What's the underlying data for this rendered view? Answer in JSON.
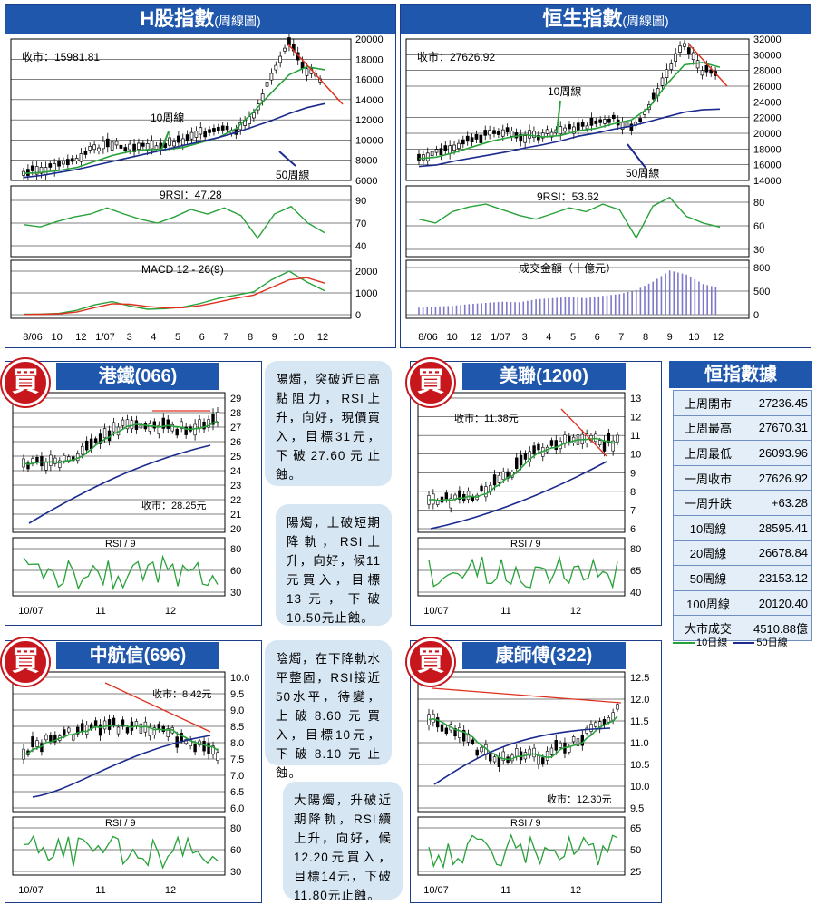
{
  "colors": {
    "blue_header": "#1f57ad",
    "ma10": "#28a23a",
    "ma50": "#1a2a8f",
    "trend": "#e0301e",
    "volume": "#7d78c8",
    "note_bg": "#d7e6f3",
    "stamp": "#c8161d"
  },
  "hshare": {
    "title": "H股指數",
    "subtitle": "(周線圖)",
    "close_label": "收市：15981.81",
    "ma10_label": "10周線",
    "ma50_label": "50周線",
    "rsi_label": "9RSI：47.28",
    "macd_label": "MACD 12 - 26(9)",
    "price_ticks": [
      "20000",
      "18000",
      "16000",
      "14000",
      "12000",
      "10000",
      "8000",
      "6000"
    ],
    "rsi_ticks": [
      "90",
      "70",
      "40"
    ],
    "macd_ticks": [
      "2000",
      "1000",
      "0"
    ],
    "x_ticks": [
      "8/06",
      "10",
      "12",
      "1/07",
      "3",
      "4",
      "5",
      "6",
      "7",
      "8",
      "9",
      "10",
      "12"
    ]
  },
  "hsi": {
    "title": "恒生指數",
    "subtitle": "(周線圖)",
    "close_label": "收市：27626.92",
    "ma10_label": "10周線",
    "ma50_label": "50周線",
    "rsi_label": "9RSI：53.62",
    "vol_label": "成交金額（十億元）",
    "price_ticks": [
      "32000",
      "30000",
      "28000",
      "26000",
      "24000",
      "22000",
      "20000",
      "18000",
      "16000",
      "14000"
    ],
    "rsi_ticks": [
      "80",
      "60",
      "30"
    ],
    "vol_ticks": [
      "800",
      "500",
      "0"
    ],
    "x_ticks": [
      "8/06",
      "10",
      "12",
      "1/07",
      "3",
      "4",
      "5",
      "6",
      "7",
      "8",
      "9",
      "10",
      "12"
    ]
  },
  "stock_mtr": {
    "title": "港鐵(066)",
    "stamp": "買",
    "close_label": "收市：28.25元",
    "price_ticks": [
      "29",
      "28",
      "27",
      "26",
      "25",
      "24",
      "23",
      "22",
      "21",
      "20"
    ],
    "rsi_label": "RSI / 9",
    "rsi_ticks": [
      "80",
      "60",
      "30"
    ],
    "x_ticks": [
      "10/07",
      "11",
      "12"
    ],
    "note": "陽燭，突破近日高點阻力，RSI上升，向好，現價買入，目標31元，下破27.60元止蝕。"
  },
  "stock_mei": {
    "title": "美聯(1200)",
    "stamp": "買",
    "close_label": "收市：11.38元",
    "price_ticks": [
      "13",
      "12",
      "11",
      "10",
      "9",
      "8",
      "7",
      "6"
    ],
    "rsi_label": "RSI / 9",
    "rsi_ticks": [
      "80",
      "65",
      "40"
    ],
    "x_ticks": [
      "10/07",
      "11",
      "12"
    ],
    "note": "陽燭，上破短期降軌，RSI上升，向好，候11元買入，目標13元，下破10.50元止蝕。"
  },
  "stock_cat": {
    "title": "中航信(696)",
    "stamp": "買",
    "close_label": "收市：8.42元",
    "price_ticks": [
      "10.0",
      "9.5",
      "9.0",
      "8.5",
      "8.0",
      "7.5",
      "7.0",
      "6.5",
      "6.0"
    ],
    "rsi_label": "RSI / 9",
    "rsi_ticks": [
      "80",
      "60",
      "30"
    ],
    "x_ticks": [
      "10/07",
      "11",
      "12"
    ],
    "note": "陰燭，在下降軌水平整固，RSI接近50水平，待變，上破8.60元買入，目標10元，下破8.10元止蝕。"
  },
  "stock_ksf": {
    "title": "康師傅(322)",
    "stamp": "買",
    "close_label": "收市：12.30元",
    "price_ticks": [
      "12.5",
      "12.0",
      "11.5",
      "11.0",
      "10.5",
      "10.0",
      "9.5"
    ],
    "rsi_label": "RSI / 9",
    "rsi_ticks": [
      "65",
      "50",
      "25"
    ],
    "x_ticks": [
      "10/07",
      "11",
      "12"
    ],
    "note": "大陽燭，升破近期降軌，RSI續上升，向好，候12.20元買入，目標14元，下破11.80元止蝕。"
  },
  "stats": {
    "title": "恒指數據",
    "rows": [
      {
        "k": "上周開市",
        "v": "27236.45"
      },
      {
        "k": "上周最高",
        "v": "27670.31"
      },
      {
        "k": "上周最低",
        "v": "26093.96"
      },
      {
        "k": "一周收市",
        "v": "27626.92"
      },
      {
        "k": "一周升跌",
        "v": "+63.28"
      },
      {
        "k": "10周線",
        "v": "28595.41"
      },
      {
        "k": "20周線",
        "v": "26678.84"
      },
      {
        "k": "50周線",
        "v": "23153.12"
      },
      {
        "k": "100周線",
        "v": "20120.40"
      },
      {
        "k": "大市成交",
        "v": "4510.88億"
      }
    ],
    "legend": {
      "ma10": "10日線",
      "ma50": "50日線"
    }
  },
  "chart_data": [
    {
      "id": "hshare_price",
      "type": "line",
      "ylim": [
        6000,
        20000
      ],
      "series": [
        {
          "name": "10周線",
          "values": [
            6700,
            6800,
            7000,
            7300,
            7900,
            8500,
            8900,
            9100,
            9100,
            9300,
            9800,
            10300,
            11200,
            12900,
            14800,
            16600,
            17400,
            17100
          ]
        },
        {
          "name": "50周線",
          "values": [
            6300,
            6500,
            6800,
            7100,
            7500,
            7900,
            8300,
            8700,
            9100,
            9500,
            9900,
            10300,
            10800,
            11400,
            12000,
            12700,
            13300,
            13700
          ]
        }
      ],
      "close_values": [
        6800,
        7100,
        7500,
        8200,
        9300,
        9600,
        9100,
        9400,
        9600,
        10000,
        10700,
        11400,
        11000,
        12700,
        16400,
        19700,
        17100,
        15981.81
      ]
    },
    {
      "id": "hsi_price",
      "type": "line",
      "ylim": [
        14000,
        32000
      ],
      "series": [
        {
          "name": "10周線",
          "values": [
            16800,
            17000,
            17600,
            18300,
            19000,
            19500,
            19900,
            19600,
            19800,
            20400,
            20700,
            21300,
            21800,
            23400,
            26400,
            28900,
            29200,
            28600
          ]
        },
        {
          "name": "50周線",
          "values": [
            15800,
            16000,
            16500,
            16900,
            17300,
            17700,
            18200,
            18600,
            19100,
            19700,
            20100,
            20600,
            21000,
            21600,
            22200,
            22800,
            23100,
            23200
          ]
        }
      ],
      "close_values": [
        17000,
        17700,
        18500,
        19200,
        20100,
        20200,
        19500,
        20000,
        20500,
        20800,
        21500,
        22100,
        20700,
        23500,
        27800,
        31500,
        28200,
        27626.92
      ]
    },
    {
      "id": "hshare_rsi",
      "type": "line",
      "ylim": [
        30,
        90
      ],
      "values": [
        58,
        55,
        62,
        68,
        72,
        80,
        72,
        65,
        60,
        68,
        78,
        72,
        80,
        70,
        40,
        72,
        82,
        60,
        47.28
      ]
    },
    {
      "id": "hshare_macd",
      "type": "line",
      "ylim": [
        0,
        2000
      ],
      "series": [
        {
          "name": "MACD",
          "values": [
            20,
            30,
            60,
            200,
            450,
            600,
            400,
            250,
            280,
            350,
            520,
            750,
            900,
            1050,
            1600,
            2000,
            1500,
            1100
          ]
        },
        {
          "name": "Signal",
          "values": [
            10,
            20,
            40,
            120,
            320,
            500,
            480,
            380,
            310,
            320,
            420,
            580,
            760,
            900,
            1250,
            1600,
            1700,
            1450
          ]
        }
      ]
    },
    {
      "id": "hsi_rsi",
      "type": "line",
      "ylim": [
        30,
        80
      ],
      "values": [
        62,
        58,
        70,
        75,
        78,
        72,
        66,
        62,
        68,
        74,
        70,
        78,
        72,
        42,
        76,
        85,
        65,
        58,
        53.62
      ]
    },
    {
      "id": "hsi_volume",
      "type": "bar",
      "ylim": [
        0,
        800
      ],
      "values": [
        120,
        140,
        150,
        180,
        200,
        220,
        210,
        260,
        280,
        300,
        280,
        320,
        350,
        420,
        560,
        750,
        680,
        520,
        450
      ]
    }
  ]
}
